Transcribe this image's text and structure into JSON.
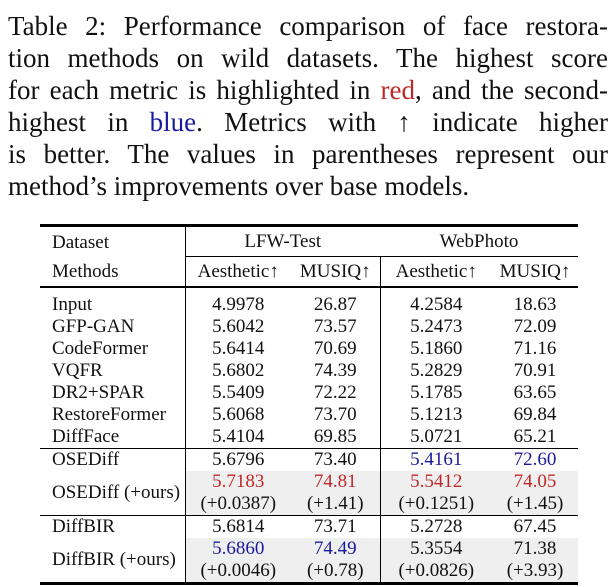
{
  "colors": {
    "red": "#c02828",
    "blue": "#1a1a9c",
    "shaded_row_bg": "#efefef",
    "text": "#111111"
  },
  "caption": {
    "lines": [
      [
        {
          "text": "Table 2: Performance comparison of face restora-"
        }
      ],
      [
        {
          "text": "tion methods on wild datasets. The highest score"
        }
      ],
      [
        {
          "text": "for each metric is highlighted in "
        },
        {
          "text": "red",
          "color": "red"
        },
        {
          "text": ", and the second-"
        }
      ],
      [
        {
          "text": "highest in "
        },
        {
          "text": "blue",
          "color": "blue"
        },
        {
          "text": ". Metrics with ↑ indicate higher"
        }
      ],
      [
        {
          "text": "is better. The values in parentheses represent our"
        }
      ],
      [
        {
          "text": "method’s improvements over base models."
        }
      ]
    ]
  },
  "table": {
    "header": {
      "row1_col1": "Dataset",
      "row2_col1": "Methods",
      "groups": [
        "LFW-Test",
        "WebPhoto"
      ],
      "subheaders": [
        "Aesthetic↑",
        "MUSIQ↑",
        "Aesthetic↑",
        "MUSIQ↑"
      ]
    },
    "sections": [
      {
        "rows": [
          {
            "method": "Input",
            "values": [
              {
                "v": "4.9978"
              },
              {
                "v": "26.87"
              },
              {
                "v": "4.2584"
              },
              {
                "v": "18.63"
              }
            ]
          },
          {
            "method": "GFP-GAN",
            "values": [
              {
                "v": "5.6042"
              },
              {
                "v": "73.57"
              },
              {
                "v": "5.2473"
              },
              {
                "v": "72.09"
              }
            ]
          },
          {
            "method": "CodeFormer",
            "values": [
              {
                "v": "5.6414"
              },
              {
                "v": "70.69"
              },
              {
                "v": "5.1860"
              },
              {
                "v": "71.16"
              }
            ]
          },
          {
            "method": "VQFR",
            "values": [
              {
                "v": "5.6802"
              },
              {
                "v": "74.39"
              },
              {
                "v": "5.2829"
              },
              {
                "v": "70.91"
              }
            ]
          },
          {
            "method": "DR2+SPAR",
            "values": [
              {
                "v": "5.5409"
              },
              {
                "v": "72.22"
              },
              {
                "v": "5.1785"
              },
              {
                "v": "63.65"
              }
            ]
          },
          {
            "method": "RestoreFormer",
            "values": [
              {
                "v": "5.6068"
              },
              {
                "v": "73.70"
              },
              {
                "v": "5.1213"
              },
              {
                "v": "69.84"
              }
            ]
          },
          {
            "method": "DiffFace",
            "values": [
              {
                "v": "5.4104"
              },
              {
                "v": "69.85"
              },
              {
                "v": "5.0721"
              },
              {
                "v": "65.21"
              }
            ]
          }
        ]
      },
      {
        "rows": [
          {
            "method": "OSEDiff",
            "values": [
              {
                "v": "5.6796"
              },
              {
                "v": "73.40"
              },
              {
                "v": "5.4161",
                "c": "blue"
              },
              {
                "v": "72.60",
                "c": "blue"
              }
            ]
          },
          {
            "method": "OSEDiff (+ours)",
            "shaded": true,
            "values": [
              {
                "v": "5.7183",
                "c": "red",
                "sub": "(+0.0387)"
              },
              {
                "v": "74.81",
                "c": "red",
                "sub": "(+1.41)"
              },
              {
                "v": "5.5412",
                "c": "red",
                "sub": "(+0.1251)"
              },
              {
                "v": "74.05",
                "c": "red",
                "sub": "(+1.45)"
              }
            ]
          }
        ]
      },
      {
        "rows": [
          {
            "method": "DiffBIR",
            "values": [
              {
                "v": "5.6814"
              },
              {
                "v": "73.71"
              },
              {
                "v": "5.2728"
              },
              {
                "v": "67.45"
              }
            ]
          },
          {
            "method": "DiffBIR (+ours)",
            "shaded": true,
            "values": [
              {
                "v": "5.6860",
                "c": "blue",
                "sub": "(+0.0046)"
              },
              {
                "v": "74.49",
                "c": "blue",
                "sub": "(+0.78)"
              },
              {
                "v": "5.3554",
                "sub": "(+0.0826)"
              },
              {
                "v": "71.38",
                "sub": "(+3.93)"
              }
            ]
          }
        ]
      }
    ]
  }
}
